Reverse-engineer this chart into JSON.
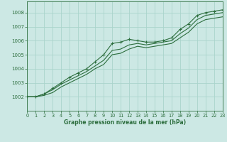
{
  "title": "Graphe pression niveau de la mer (hPa)",
  "bg_color": "#cce8e4",
  "grid_color": "#aad4cc",
  "line_color": "#2d6e3e",
  "xlim": [
    0,
    23
  ],
  "ylim": [
    1001.0,
    1008.8
  ],
  "yticks": [
    1002,
    1003,
    1004,
    1005,
    1006,
    1007,
    1008
  ],
  "xticks": [
    0,
    1,
    2,
    3,
    4,
    5,
    6,
    7,
    8,
    9,
    10,
    11,
    12,
    13,
    14,
    15,
    16,
    17,
    18,
    19,
    20,
    21,
    22,
    23
  ],
  "series": [
    [
      1002.0,
      1002.0,
      1002.2,
      1002.6,
      1003.0,
      1003.4,
      1003.7,
      1004.0,
      1004.5,
      1005.0,
      1005.8,
      1005.9,
      1006.1,
      1006.0,
      1005.9,
      1005.9,
      1006.0,
      1006.2,
      1006.8,
      1007.2,
      1007.8,
      1008.0,
      1008.1,
      1008.2
    ],
    [
      1002.0,
      1002.0,
      1002.2,
      1002.5,
      1002.9,
      1003.2,
      1003.5,
      1003.8,
      1004.2,
      1004.6,
      1005.3,
      1005.4,
      1005.7,
      1005.8,
      1005.7,
      1005.8,
      1005.9,
      1006.0,
      1006.5,
      1006.9,
      1007.5,
      1007.8,
      1007.9,
      1008.0
    ],
    [
      1002.0,
      1002.0,
      1002.1,
      1002.3,
      1002.7,
      1003.0,
      1003.3,
      1003.6,
      1004.0,
      1004.3,
      1005.0,
      1005.1,
      1005.4,
      1005.6,
      1005.5,
      1005.6,
      1005.7,
      1005.8,
      1006.2,
      1006.6,
      1007.2,
      1007.5,
      1007.6,
      1007.7
    ]
  ],
  "marker_series": 0
}
